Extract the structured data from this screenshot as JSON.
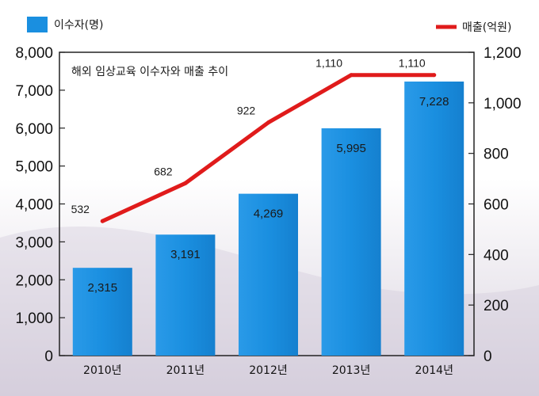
{
  "chart_data": {
    "type": "bar",
    "title": "해외 임상교육 이수자와 매출 추이",
    "categories": [
      "2010년",
      "2011년",
      "2012년",
      "2013년",
      "2014년"
    ],
    "ylim": [
      0,
      8000
    ],
    "y2lim": [
      0,
      1200
    ],
    "yticks": [
      "0",
      "1,000",
      "2,000",
      "3,000",
      "4,000",
      "5,000",
      "6,000",
      "7,000",
      "8,000"
    ],
    "y2ticks": [
      "0",
      "200",
      "400",
      "600",
      "800",
      "1,000",
      "1,200"
    ],
    "grid": false,
    "legend_placement": "top",
    "series": [
      {
        "name": "이수자(명)",
        "type": "bar",
        "axis": "left",
        "color": "#1a8fe0",
        "values": [
          2315,
          3191,
          4269,
          5995,
          7228
        ],
        "labels": [
          "2,315",
          "3,191",
          "4,269",
          "5,995",
          "7,228"
        ]
      },
      {
        "name": "매출(억원)",
        "type": "line",
        "axis": "right",
        "color": "#e01b1b",
        "values": [
          532,
          682,
          922,
          1110,
          1110
        ],
        "labels": [
          "532",
          "682",
          "922",
          "1,110",
          "1,110"
        ]
      }
    ]
  }
}
